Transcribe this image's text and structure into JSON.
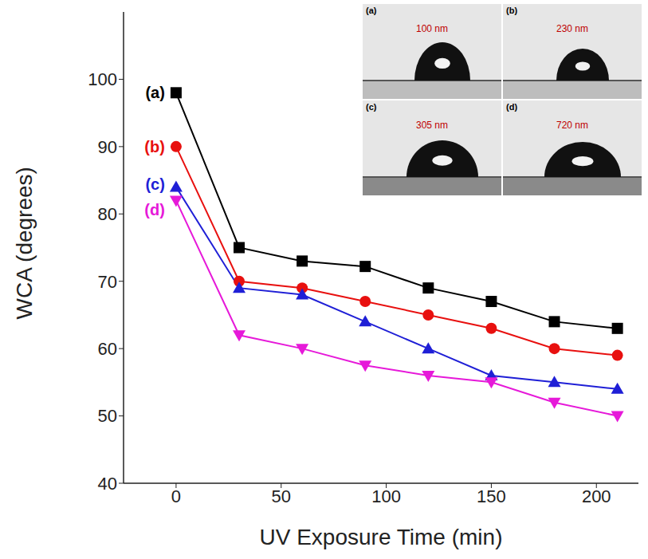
{
  "chart_data": {
    "type": "line",
    "x_label": "UV Exposure Time (min)",
    "y_label": "WCA (degrees)",
    "x": [
      0,
      30,
      60,
      90,
      120,
      150,
      180,
      210
    ],
    "series": [
      {
        "name": "(a)",
        "color": "#000000",
        "marker": "square",
        "values": [
          98,
          75,
          73,
          72.2,
          69,
          67,
          64,
          63
        ]
      },
      {
        "name": "(b)",
        "color": "#e8100f",
        "marker": "circle",
        "values": [
          90,
          70,
          69,
          67,
          65,
          63,
          60,
          59
        ]
      },
      {
        "name": "(c)",
        "color": "#1f1fd6",
        "marker": "triangle",
        "values": [
          84,
          69,
          68,
          64,
          60,
          56,
          55,
          54
        ]
      },
      {
        "name": "(d)",
        "color": "#e619d9",
        "marker": "triangle-down",
        "values": [
          82,
          62,
          60,
          57.5,
          56,
          55,
          52,
          50
        ]
      }
    ],
    "xlim": [
      -25,
      220
    ],
    "ylim": [
      40,
      110
    ],
    "xticks": [
      0,
      50,
      100,
      150,
      200
    ],
    "yticks": [
      40,
      50,
      60,
      70,
      80,
      90,
      100
    ],
    "grid": false,
    "inset": {
      "panels": [
        {
          "label": "(a)",
          "text": "100 nm"
        },
        {
          "label": "(b)",
          "text": "230 nm"
        },
        {
          "label": "(c)",
          "text": "305 nm"
        },
        {
          "label": "(d)",
          "text": "720 nm"
        }
      ]
    }
  }
}
